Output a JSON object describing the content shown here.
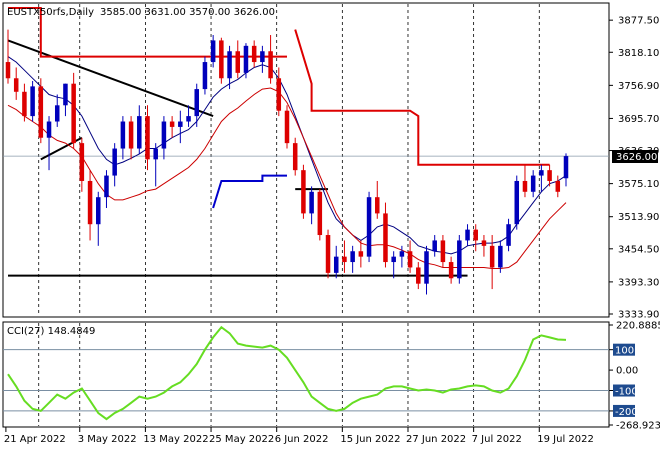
{
  "chart_data": [
    {
      "type": "candlestick",
      "title": "EUSTX50rfs,Daily",
      "ohlc_label": "3585.00 3631.00 3570.00 3626.00",
      "last_price": "3626.00",
      "y_ticks": [
        "3877.50",
        "3818.10",
        "3756.90",
        "3695.70",
        "3636.30",
        "3575.10",
        "3513.90",
        "3454.50",
        "3393.30",
        "3333.90"
      ],
      "ylim": [
        3333.9,
        3900
      ],
      "x_ticks": [
        "21 Apr 2022",
        "3 May 2022",
        "13 May 2022",
        "25 May 2022",
        "6 Jun 2022",
        "15 Jun 2022",
        "27 Jun 2022",
        "7 Jul 2022",
        "19 Jul 2022"
      ],
      "x_tick_bar_index": [
        0,
        9,
        17,
        25,
        33,
        41,
        49,
        57,
        65
      ],
      "candles": [
        [
          3800,
          3860,
          3760,
          3770
        ],
        [
          3770,
          3790,
          3730,
          3745
        ],
        [
          3745,
          3760,
          3690,
          3700
        ],
        [
          3700,
          3765,
          3690,
          3755
        ],
        [
          3755,
          3770,
          3650,
          3660
        ],
        [
          3660,
          3700,
          3600,
          3690
        ],
        [
          3690,
          3740,
          3680,
          3720
        ],
        [
          3720,
          3760,
          3700,
          3760
        ],
        [
          3760,
          3780,
          3640,
          3650
        ],
        [
          3650,
          3660,
          3560,
          3580
        ],
        [
          3580,
          3600,
          3470,
          3500
        ],
        [
          3500,
          3560,
          3460,
          3550
        ],
        [
          3550,
          3600,
          3530,
          3590
        ],
        [
          3590,
          3650,
          3570,
          3640
        ],
        [
          3640,
          3700,
          3620,
          3690
        ],
        [
          3690,
          3700,
          3620,
          3640
        ],
        [
          3640,
          3720,
          3630,
          3700
        ],
        [
          3700,
          3720,
          3600,
          3620
        ],
        [
          3620,
          3650,
          3570,
          3640
        ],
        [
          3640,
          3700,
          3620,
          3690
        ],
        [
          3690,
          3700,
          3660,
          3680
        ],
        [
          3680,
          3710,
          3650,
          3690
        ],
        [
          3690,
          3720,
          3680,
          3700
        ],
        [
          3700,
          3760,
          3680,
          3750
        ],
        [
          3750,
          3810,
          3740,
          3800
        ],
        [
          3800,
          3850,
          3790,
          3840
        ],
        [
          3840,
          3845,
          3760,
          3770
        ],
        [
          3770,
          3830,
          3750,
          3820
        ],
        [
          3820,
          3840,
          3770,
          3780
        ],
        [
          3780,
          3835,
          3770,
          3830
        ],
        [
          3830,
          3840,
          3790,
          3800
        ],
        [
          3800,
          3830,
          3780,
          3820
        ],
        [
          3820,
          3850,
          3760,
          3770
        ],
        [
          3770,
          3790,
          3700,
          3710
        ],
        [
          3710,
          3720,
          3640,
          3650
        ],
        [
          3650,
          3660,
          3590,
          3600
        ],
        [
          3600,
          3610,
          3510,
          3520
        ],
        [
          3520,
          3570,
          3500,
          3560
        ],
        [
          3560,
          3565,
          3470,
          3480
        ],
        [
          3480,
          3490,
          3400,
          3410
        ],
        [
          3410,
          3460,
          3400,
          3440
        ],
        [
          3440,
          3470,
          3410,
          3430
        ],
        [
          3430,
          3460,
          3410,
          3450
        ],
        [
          3450,
          3470,
          3420,
          3440
        ],
        [
          3440,
          3560,
          3430,
          3550
        ],
        [
          3550,
          3580,
          3510,
          3520
        ],
        [
          3520,
          3540,
          3420,
          3430
        ],
        [
          3430,
          3450,
          3400,
          3440
        ],
        [
          3440,
          3460,
          3420,
          3450
        ],
        [
          3450,
          3470,
          3410,
          3420
        ],
        [
          3420,
          3430,
          3380,
          3390
        ],
        [
          3390,
          3460,
          3370,
          3450
        ],
        [
          3450,
          3480,
          3440,
          3470
        ],
        [
          3470,
          3480,
          3420,
          3430
        ],
        [
          3430,
          3440,
          3390,
          3400
        ],
        [
          3400,
          3480,
          3390,
          3470
        ],
        [
          3470,
          3500,
          3460,
          3490
        ],
        [
          3490,
          3500,
          3450,
          3470
        ],
        [
          3470,
          3480,
          3440,
          3460
        ],
        [
          3460,
          3480,
          3380,
          3420
        ],
        [
          3420,
          3470,
          3410,
          3460
        ],
        [
          3460,
          3510,
          3450,
          3500
        ],
        [
          3500,
          3590,
          3490,
          3580
        ],
        [
          3580,
          3610,
          3550,
          3560
        ],
        [
          3560,
          3600,
          3550,
          3590
        ],
        [
          3590,
          3610,
          3560,
          3600
        ],
        [
          3600,
          3610,
          3570,
          3580
        ],
        [
          3580,
          3590,
          3550,
          3560
        ],
        [
          3585,
          3631,
          3570,
          3626
        ]
      ],
      "series": [
        {
          "role": "blue-ma",
          "color": "#000080",
          "values": [
            3810,
            3800,
            3785,
            3770,
            3755,
            3740,
            3735,
            3732,
            3720,
            3700,
            3670,
            3640,
            3620,
            3610,
            3615,
            3622,
            3630,
            3640,
            3640,
            3650,
            3660,
            3668,
            3675,
            3690,
            3712,
            3735,
            3750,
            3760,
            3768,
            3780,
            3790,
            3795,
            3790,
            3770,
            3740,
            3700,
            3660,
            3620,
            3580,
            3540,
            3510,
            3495,
            3480,
            3470,
            3480,
            3495,
            3500,
            3495,
            3485,
            3475,
            3460,
            3455,
            3450,
            3448,
            3445,
            3450,
            3460,
            3463,
            3465,
            3465,
            3468,
            3478,
            3500,
            3520,
            3540,
            3560,
            3575,
            3580,
            3590
          ]
        },
        {
          "role": "red-ma",
          "color": "#cc0000",
          "values": [
            3720,
            3712,
            3700,
            3690,
            3680,
            3665,
            3655,
            3650,
            3640,
            3625,
            3600,
            3575,
            3555,
            3545,
            3545,
            3550,
            3555,
            3562,
            3565,
            3575,
            3585,
            3595,
            3605,
            3620,
            3640,
            3665,
            3690,
            3705,
            3715,
            3728,
            3740,
            3750,
            3752,
            3745,
            3725,
            3695,
            3660,
            3625,
            3590,
            3555,
            3520,
            3495,
            3480,
            3465,
            3460,
            3462,
            3462,
            3458,
            3452,
            3445,
            3435,
            3428,
            3425,
            3420,
            3420,
            3420,
            3420,
            3420,
            3420,
            3418,
            3418,
            3420,
            3430,
            3450,
            3470,
            3490,
            3510,
            3525,
            3540
          ]
        }
      ],
      "stop_line_red": [
        [
          0,
          3900
        ],
        [
          4,
          3900
        ],
        [
          4,
          3810
        ],
        [
          13,
          3810
        ],
        [
          13,
          3810
        ],
        [
          25,
          3810
        ],
        [
          25,
          3810
        ],
        [
          34,
          3810
        ],
        [
          null,
          null
        ],
        [
          35,
          3860
        ],
        [
          37,
          3760
        ],
        [
          37,
          3710
        ],
        [
          48,
          3710
        ],
        [
          49,
          3710
        ],
        [
          50,
          3700
        ],
        [
          50,
          3610
        ],
        [
          61,
          3610
        ],
        [
          65,
          3610
        ],
        [
          66,
          3610
        ]
      ],
      "stop_line_blue": [
        [
          25,
          3530
        ],
        [
          26,
          3580
        ],
        [
          31,
          3580
        ],
        [
          31,
          3590
        ],
        [
          34,
          3590
        ]
      ],
      "trendlines": [
        {
          "from": [
            0,
            3840
          ],
          "to": [
            25,
            3700
          ]
        },
        {
          "from": [
            4,
            3620
          ],
          "to": [
            9,
            3660
          ]
        },
        {
          "from": [
            0,
            3405
          ],
          "to": [
            56,
            3405
          ]
        },
        {
          "from": [
            35,
            3565
          ],
          "to": [
            39,
            3565
          ]
        }
      ],
      "vertical_lines_at_bar": [
        4,
        9,
        17,
        25,
        33,
        41,
        49,
        57,
        65
      ]
    },
    {
      "type": "line",
      "title": "CCI(27) 148.4849",
      "y_ticks_right": [
        "220.8885",
        "100",
        "0.00",
        "-100",
        "-200",
        "-268.9239"
      ],
      "ylim": [
        -268.9239,
        220.8885
      ],
      "levels_boxed": [
        "100",
        "-100",
        "-200"
      ],
      "series": [
        {
          "name": "CCI(27)",
          "color": "#66dd22",
          "values": [
            -20,
            -80,
            -150,
            -190,
            -200,
            -160,
            -120,
            -140,
            -110,
            -90,
            -150,
            -210,
            -240,
            -210,
            -190,
            -160,
            -130,
            -140,
            -130,
            -110,
            -80,
            -60,
            -20,
            30,
            100,
            160,
            210,
            180,
            130,
            120,
            115,
            110,
            120,
            100,
            60,
            0,
            -60,
            -130,
            -160,
            -190,
            -200,
            -190,
            -160,
            -140,
            -130,
            -120,
            -90,
            -80,
            -80,
            -90,
            -100,
            -95,
            -100,
            -110,
            -95,
            -90,
            -80,
            -75,
            -80,
            -100,
            -110,
            -90,
            -30,
            50,
            150,
            170,
            160,
            150,
            148
          ]
        }
      ]
    }
  ]
}
